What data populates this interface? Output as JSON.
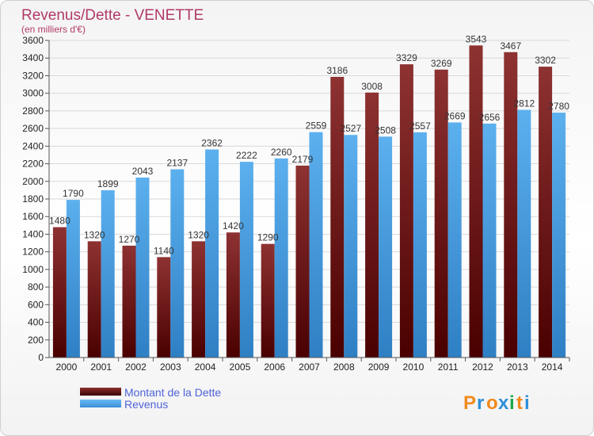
{
  "chart_data": {
    "type": "bar",
    "title": "Revenus/Dette - VENETTE",
    "subtitle": "(en milliers d'€)",
    "categories": [
      "2000",
      "2001",
      "2002",
      "2003",
      "2004",
      "2005",
      "2006",
      "2007",
      "2008",
      "2009",
      "2010",
      "2011",
      "2012",
      "2013",
      "2014"
    ],
    "series": [
      {
        "name": "Montant de la Dette",
        "color": "#8b2a2a",
        "values": [
          1480,
          1320,
          1270,
          1140,
          1320,
          1420,
          1290,
          2179,
          3186,
          3008,
          3329,
          3269,
          3543,
          3467,
          3302
        ],
        "labels": [
          "1480",
          "1320",
          "1270",
          "1140",
          "1320",
          "1420",
          "1290",
          "2179",
          "3186",
          "3008",
          "3329",
          "3269",
          "3543",
          "3467",
          "3302"
        ]
      },
      {
        "name": "Revenus",
        "color": "#4aa3e6",
        "values": [
          1790,
          1899,
          2043,
          2137,
          2362,
          2222,
          2260,
          2559,
          2527,
          2508,
          2557,
          2669,
          2656,
          2812,
          2780
        ],
        "labels": [
          "1790",
          "1899",
          "2043",
          "2137",
          "2362",
          "2222",
          "2260",
          "2559",
          "2527",
          "2508",
          "2557",
          "2669",
          "2656",
          "2812",
          "2780"
        ]
      }
    ],
    "ylim": [
      0,
      3600
    ],
    "yticks": [
      0,
      200,
      400,
      600,
      800,
      1000,
      1200,
      1400,
      1600,
      1800,
      2000,
      2200,
      2400,
      2600,
      2800,
      3000,
      3200,
      3400,
      3600
    ],
    "grid": true,
    "legend_position": "bottom-left"
  },
  "branding": {
    "logo_text": "Proxiti"
  }
}
